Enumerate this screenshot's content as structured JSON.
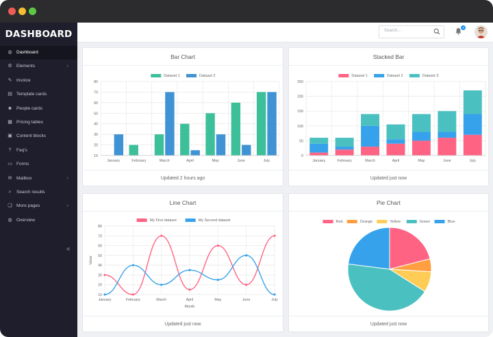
{
  "app": {
    "title": "DASHBOARD"
  },
  "window": {
    "dots": [
      "#ee5c55",
      "#f6bd33",
      "#5dc943"
    ]
  },
  "sidebar": {
    "items": [
      {
        "label": "Dashboard",
        "icon": "dashboard-icon",
        "glyph": "◍",
        "active": true,
        "chevron": false
      },
      {
        "label": "Elements",
        "icon": "elements-icon",
        "glyph": "⚙",
        "active": false,
        "chevron": true
      },
      {
        "label": "Invoice",
        "icon": "invoice-icon",
        "glyph": "✎",
        "active": false,
        "chevron": false
      },
      {
        "label": "Template cards",
        "icon": "template-cards-icon",
        "glyph": "▤",
        "active": false,
        "chevron": false
      },
      {
        "label": "People cards",
        "icon": "people-icon",
        "glyph": "☻",
        "active": false,
        "chevron": false
      },
      {
        "label": "Pricing tables",
        "icon": "table-icon",
        "glyph": "▦",
        "active": false,
        "chevron": false
      },
      {
        "label": "Content blocks",
        "icon": "blocks-icon",
        "glyph": "▣",
        "active": false,
        "chevron": false
      },
      {
        "label": "Faq's",
        "icon": "question-icon",
        "glyph": "?",
        "active": false,
        "chevron": false
      },
      {
        "label": "Forms",
        "icon": "forms-icon",
        "glyph": "▭",
        "active": false,
        "chevron": false
      },
      {
        "label": "Mailbox",
        "icon": "mailbox-icon",
        "glyph": "✉",
        "active": false,
        "chevron": true
      },
      {
        "label": "Search results",
        "icon": "search-results-icon",
        "glyph": "⌕",
        "active": false,
        "chevron": false
      },
      {
        "label": "More pages",
        "icon": "pages-icon",
        "glyph": "❏",
        "active": false,
        "chevron": true
      },
      {
        "label": "Overview",
        "icon": "overview-icon",
        "glyph": "◍",
        "active": false,
        "chevron": false
      }
    ],
    "collapse_icon": "double-chevron-left-icon"
  },
  "topbar": {
    "search_placeholder": "Search...",
    "notification_count": "3"
  },
  "cards": {
    "bar": {
      "title": "Bar Chart",
      "footer": "Updated 2 hours ago"
    },
    "stacked": {
      "title": "Stacked Bar",
      "footer": "Updated just now"
    },
    "line": {
      "title": "Line Chart",
      "footer": "Updated just now"
    },
    "pie": {
      "title": "Pie Chart",
      "footer": "Updated just now"
    }
  },
  "chart_data": [
    {
      "type": "bar",
      "title": "Bar Chart",
      "categories": [
        "January",
        "February",
        "March",
        "April",
        "May",
        "June",
        "July"
      ],
      "series": [
        {
          "name": "Dataset 1",
          "color": "#3dbf9a",
          "values": [
            null,
            20,
            30,
            40,
            50,
            60,
            70
          ]
        },
        {
          "name": "Dataset 2",
          "color": "#3f93d4",
          "values": [
            30,
            null,
            70,
            15,
            30,
            20,
            70
          ]
        }
      ],
      "ylim": [
        10,
        80
      ],
      "yticks": [
        10,
        20,
        30,
        40,
        50,
        60,
        70,
        80
      ],
      "grid": true,
      "legend": "top"
    },
    {
      "type": "bar",
      "stacked": true,
      "title": "Stacked Bar",
      "categories": [
        "January",
        "February",
        "March",
        "April",
        "May",
        "June",
        "July"
      ],
      "series": [
        {
          "name": "Dataset 1",
          "color": "#ff6384",
          "values": [
            10,
            20,
            30,
            40,
            50,
            60,
            70
          ]
        },
        {
          "name": "Dataset 2",
          "color": "#36a2eb",
          "values": [
            30,
            10,
            70,
            15,
            30,
            20,
            70
          ]
        },
        {
          "name": "Dataset 3",
          "color": "#4bc0c0",
          "values": [
            20,
            30,
            40,
            50,
            60,
            70,
            80
          ]
        }
      ],
      "ylim": [
        0,
        250
      ],
      "yticks": [
        0,
        50,
        100,
        150,
        200,
        250
      ],
      "grid": true,
      "legend": "top"
    },
    {
      "type": "line",
      "title": "Line Chart",
      "categories": [
        "January",
        "February",
        "March",
        "April",
        "May",
        "June",
        "July"
      ],
      "series": [
        {
          "name": "My First dataset",
          "color": "#ff6384",
          "values": [
            30,
            10,
            70,
            15,
            60,
            20,
            70
          ]
        },
        {
          "name": "My Second dataset",
          "color": "#36a2eb",
          "values": [
            10,
            40,
            20,
            35,
            25,
            50,
            10
          ]
        }
      ],
      "xlabel": "Month",
      "ylabel": "Value",
      "ylim": [
        10,
        80
      ],
      "yticks": [
        10,
        20,
        30,
        40,
        50,
        60,
        70,
        80
      ],
      "grid": true,
      "legend": "top"
    },
    {
      "type": "pie",
      "title": "Pie Chart",
      "labels": [
        "Red",
        "Orange",
        "Yellow",
        "Green",
        "Blue"
      ],
      "colors": [
        "#ff6384",
        "#ff9f40",
        "#ffcd56",
        "#4bc0c0",
        "#36a2eb"
      ],
      "values": [
        21,
        5,
        8,
        43,
        23
      ],
      "legend": "top"
    }
  ]
}
